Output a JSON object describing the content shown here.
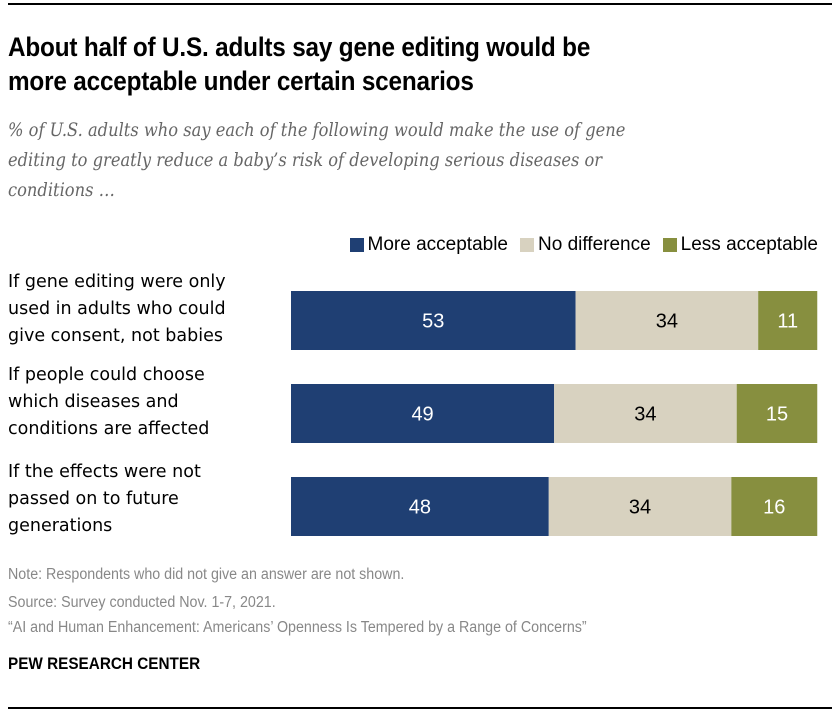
{
  "chart_data": {
    "type": "bar",
    "orientation": "horizontal",
    "stacked": true,
    "title": "About half of U.S. adults say gene editing would be more acceptable under certain scenarios",
    "subtitle": "% of U.S. adults who say each of the following would make the use of gene editing to greatly reduce a baby’s risk of developing serious diseases or conditions …",
    "categories": [
      "If gene editing were only used in adults who could give consent, not babies",
      "If people could choose which diseases and conditions are affected",
      "If the effects were not passed on to future generations"
    ],
    "category_lines": [
      [
        "If gene editing were only",
        "used in adults who could",
        "give consent, not babies"
      ],
      [
        "If people could choose",
        "which diseases and",
        "conditions are affected"
      ],
      [
        "If the effects were not",
        "passed on to future",
        "generations"
      ]
    ],
    "series": [
      {
        "name": "More acceptable",
        "color": "#1f3f73",
        "label_color": "#ffffff",
        "values": [
          53,
          49,
          48
        ]
      },
      {
        "name": "No difference",
        "color": "#d8d2c0",
        "label_color": "#000000",
        "values": [
          34,
          34,
          34
        ]
      },
      {
        "name": "Less acceptable",
        "color": "#878f3f",
        "label_color": "#ffffff",
        "values": [
          11,
          15,
          16
        ]
      }
    ],
    "xlabel": "",
    "ylabel": "",
    "xlim": [
      0,
      100
    ],
    "grid": false,
    "legend_position": "top-right",
    "data_labels": true
  },
  "header": {
    "title_lines": [
      "About half of U.S. adults say gene editing would be",
      "more acceptable under certain scenarios"
    ],
    "subtitle_lines": [
      "% of U.S. adults who say each of the following would make the use of gene",
      "editing to greatly reduce a baby’s risk of developing serious diseases or",
      "conditions …"
    ]
  },
  "legend": {
    "items": [
      {
        "label": "More acceptable",
        "color": "#1f3f73"
      },
      {
        "label": "No difference",
        "color": "#d8d2c0"
      },
      {
        "label": "Less acceptable",
        "color": "#878f3f"
      }
    ]
  },
  "footer": {
    "note": "Note: Respondents who did not give an answer are not shown.",
    "source": "Source: Survey conducted Nov. 1-7, 2021.",
    "report": "“AI and Human Enhancement: Americans’ Openness Is Tempered by a Range of Concerns”",
    "brand": "PEW RESEARCH CENTER"
  }
}
